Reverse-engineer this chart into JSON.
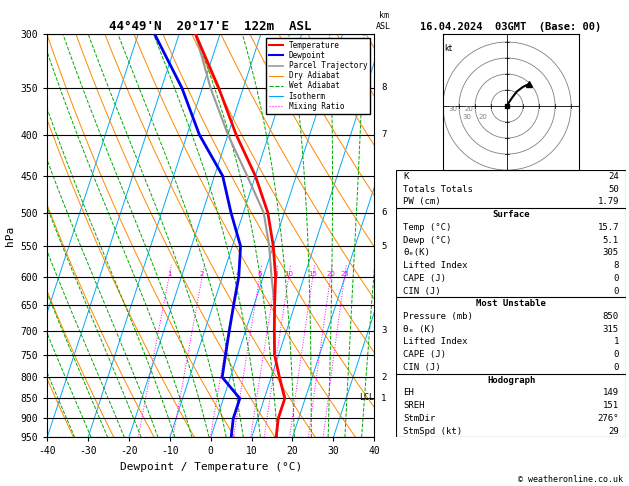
{
  "title_left": "44°49'N  20°17'E  122m  ASL",
  "title_right": "16.04.2024  03GMT  (Base: 00)",
  "xlabel": "Dewpoint / Temperature (°C)",
  "ylabel_left": "hPa",
  "pressure_levels": [
    300,
    350,
    400,
    450,
    500,
    550,
    600,
    650,
    700,
    750,
    800,
    850,
    900,
    950
  ],
  "km_labels": {
    "350": "8",
    "400": "7",
    "500": "6",
    "550": "5",
    "700": "3",
    "800": "2",
    "850": "1"
  },
  "lcl_pressure": 848,
  "temp_profile_p": [
    300,
    350,
    400,
    450,
    500,
    550,
    600,
    650,
    700,
    750,
    800,
    850,
    900,
    950
  ],
  "temp_profile_t": [
    -36,
    -26,
    -18,
    -10,
    -4,
    0,
    3,
    5,
    7,
    9,
    12,
    15,
    15,
    16
  ],
  "dewp_profile_p": [
    300,
    350,
    400,
    450,
    500,
    550,
    600,
    650,
    700,
    750,
    800,
    850,
    900,
    950
  ],
  "dewp_profile_t": [
    -46,
    -35,
    -27,
    -18,
    -13,
    -8,
    -6,
    -5,
    -4,
    -3,
    -2,
    4,
    4,
    5
  ],
  "parcel_profile_p": [
    848,
    800,
    750,
    700,
    650,
    600,
    550,
    500,
    450,
    400,
    350,
    300
  ],
  "parcel_profile_t": [
    15,
    12,
    9,
    7,
    5,
    2,
    -1,
    -5,
    -12,
    -20,
    -28,
    -36
  ],
  "mixing_ratio_values": [
    1,
    2,
    4,
    6,
    8,
    10,
    15,
    20,
    25
  ],
  "mixing_ratio_color": "#FF00FF",
  "isotherm_color": "#00AAFF",
  "dry_adiabat_color": "#FF8800",
  "wet_adiabat_color": "#00AA00",
  "temp_color": "#FF0000",
  "dewp_color": "#0000EE",
  "parcel_color": "#999999",
  "info_K": 24,
  "info_TT": 50,
  "info_PW": "1.79",
  "sfc_temp": "15.7",
  "sfc_dewp": "5.1",
  "sfc_theta_e": "305",
  "sfc_li": "8",
  "sfc_cape": "0",
  "sfc_cin": "0",
  "mu_pressure": "850",
  "mu_theta_e": "315",
  "mu_li": "1",
  "mu_cape": "0",
  "mu_cin": "0",
  "hodo_EH": "149",
  "hodo_SREH": "151",
  "hodo_StmDir": "276°",
  "hodo_StmSpd": "29",
  "copyright": "© weatheronline.co.uk",
  "hodo_u": [
    0,
    1,
    3,
    6,
    10,
    14
  ],
  "hodo_v": [
    0,
    2,
    5,
    9,
    12,
    14
  ],
  "hodo_circle_radii": [
    10,
    20,
    30,
    40
  ]
}
